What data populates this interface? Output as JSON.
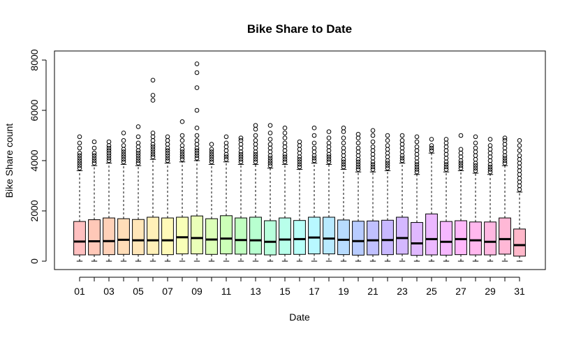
{
  "chart_data": {
    "type": "boxplot",
    "title": "Bike Share to Date",
    "xlabel": "Date",
    "ylabel": "Bike Share count",
    "ylim": [
      0,
      8000
    ],
    "yticks": [
      0,
      2000,
      4000,
      6000,
      8000
    ],
    "xtick_labels_shown": [
      "01",
      "03",
      "05",
      "07",
      "09",
      "11",
      "13",
      "15",
      "17",
      "19",
      "21",
      "23",
      "25",
      "27",
      "29",
      "31"
    ],
    "categories": [
      "01",
      "02",
      "03",
      "04",
      "05",
      "06",
      "07",
      "08",
      "09",
      "10",
      "11",
      "12",
      "13",
      "14",
      "15",
      "16",
      "17",
      "18",
      "19",
      "20",
      "21",
      "22",
      "23",
      "24",
      "25",
      "26",
      "27",
      "28",
      "29",
      "30",
      "31"
    ],
    "colors": [
      "#FFC0C0",
      "#FFC8B8",
      "#FFD1B8",
      "#FFDDB8",
      "#FFE6B8",
      "#FFF0B8",
      "#FFFAB8",
      "#F8FFB8",
      "#EAFFB8",
      "#DCFFB8",
      "#CCFFB8",
      "#C0FFC0",
      "#B8FFD0",
      "#B8FFDC",
      "#B8FFEA",
      "#B8FFF8",
      "#B8F8FF",
      "#B8EAFF",
      "#B8DCFF",
      "#B8CCFF",
      "#C0C0FF",
      "#C8B8FF",
      "#D4B8FF",
      "#E0B8FF",
      "#ECB8FF",
      "#F6B8FF",
      "#FFB8FA",
      "#FFB8EE",
      "#FFB8E2",
      "#FFB8D6",
      "#FFB8CA"
    ],
    "boxes": [
      {
        "category": "01",
        "whisker_low": 0,
        "q1": 250,
        "median": 780,
        "q3": 1580,
        "whisker_high": 3600,
        "outliers": [
          3700,
          3800,
          3900,
          4000,
          4100,
          4200,
          4300,
          4500,
          4700,
          4950
        ]
      },
      {
        "category": "02",
        "whisker_low": 0,
        "q1": 250,
        "median": 790,
        "q3": 1650,
        "whisker_high": 3800,
        "outliers": [
          3900,
          4000,
          4100,
          4200,
          4300,
          4500,
          4750
        ]
      },
      {
        "category": "03",
        "whisker_low": 0,
        "q1": 260,
        "median": 800,
        "q3": 1720,
        "whisker_high": 3900,
        "outliers": [
          4000,
          4100,
          4200,
          4300,
          4400,
          4500,
          4600,
          4750
        ]
      },
      {
        "category": "04",
        "whisker_low": 0,
        "q1": 270,
        "median": 850,
        "q3": 1690,
        "whisker_high": 3850,
        "outliers": [
          3950,
          4050,
          4150,
          4250,
          4350,
          4450,
          4600,
          4800,
          5100
        ]
      },
      {
        "category": "05",
        "whisker_low": 0,
        "q1": 260,
        "median": 830,
        "q3": 1660,
        "whisker_high": 3800,
        "outliers": [
          3900,
          4000,
          4100,
          4200,
          4300,
          4400,
          4550,
          4700,
          4950,
          5350
        ]
      },
      {
        "category": "06",
        "whisker_low": 0,
        "q1": 270,
        "median": 830,
        "q3": 1750,
        "whisker_high": 4050,
        "outliers": [
          4150,
          4250,
          4350,
          4450,
          4550,
          4650,
          4800,
          4950,
          5100,
          6400,
          6600,
          7200
        ]
      },
      {
        "category": "07",
        "whisker_low": 0,
        "q1": 260,
        "median": 830,
        "q3": 1720,
        "whisker_high": 3900,
        "outliers": [
          4000,
          4100,
          4200,
          4300,
          4400,
          4500,
          4650,
          4800,
          4950
        ]
      },
      {
        "category": "08",
        "whisker_low": 0,
        "q1": 290,
        "median": 950,
        "q3": 1750,
        "whisker_high": 3950,
        "outliers": [
          4050,
          4150,
          4250,
          4350,
          4450,
          4600,
          4800,
          5000,
          5550
        ]
      },
      {
        "category": "09",
        "whisker_low": 0,
        "q1": 290,
        "median": 920,
        "q3": 1800,
        "whisker_high": 4000,
        "outliers": [
          4100,
          4200,
          4300,
          4400,
          4500,
          4650,
          4800,
          5000,
          5300,
          6000,
          6900,
          7500,
          7850
        ]
      },
      {
        "category": "10",
        "whisker_low": 0,
        "q1": 270,
        "median": 860,
        "q3": 1690,
        "whisker_high": 3850,
        "outliers": [
          3950,
          4050,
          4150,
          4250,
          4350,
          4450,
          4650
        ]
      },
      {
        "category": "11",
        "whisker_low": 0,
        "q1": 290,
        "median": 900,
        "q3": 1810,
        "whisker_high": 3950,
        "outliers": [
          4050,
          4150,
          4250,
          4400,
          4550,
          4700,
          4950
        ]
      },
      {
        "category": "12",
        "whisker_low": 0,
        "q1": 280,
        "median": 840,
        "q3": 1720,
        "whisker_high": 3850,
        "outliers": [
          3950,
          4050,
          4150,
          4250,
          4350,
          4500,
          4650,
          4800,
          4900
        ]
      },
      {
        "category": "13",
        "whisker_low": 0,
        "q1": 280,
        "median": 830,
        "q3": 1750,
        "whisker_high": 3850,
        "outliers": [
          3950,
          4050,
          4150,
          4250,
          4350,
          4500,
          4650,
          4800,
          5000,
          5250,
          5400
        ]
      },
      {
        "category": "14",
        "whisker_low": 0,
        "q1": 250,
        "median": 770,
        "q3": 1610,
        "whisker_high": 3700,
        "outliers": [
          3800,
          3900,
          4000,
          4100,
          4200,
          4350,
          4500,
          4650,
          4850,
          5100,
          5400
        ]
      },
      {
        "category": "15",
        "whisker_low": 0,
        "q1": 270,
        "median": 860,
        "q3": 1720,
        "whisker_high": 3850,
        "outliers": [
          3950,
          4050,
          4150,
          4250,
          4400,
          4550,
          4700,
          4900,
          5100,
          5300
        ]
      },
      {
        "category": "16",
        "whisker_low": 0,
        "q1": 270,
        "median": 880,
        "q3": 1620,
        "whisker_high": 3650,
        "outliers": [
          3750,
          3850,
          3950,
          4050,
          4150,
          4300,
          4450,
          4600,
          4750
        ]
      },
      {
        "category": "17",
        "whisker_low": 0,
        "q1": 290,
        "median": 940,
        "q3": 1750,
        "whisker_high": 3900,
        "outliers": [
          4000,
          4100,
          4200,
          4350,
          4500,
          4700,
          5000,
          5300
        ]
      },
      {
        "category": "18",
        "whisker_low": 0,
        "q1": 290,
        "median": 900,
        "q3": 1750,
        "whisker_high": 3850,
        "outliers": [
          3950,
          4050,
          4150,
          4250,
          4400,
          4550,
          4700,
          4900,
          5150
        ]
      },
      {
        "category": "19",
        "whisker_low": 0,
        "q1": 260,
        "median": 850,
        "q3": 1640,
        "whisker_high": 3650,
        "outliers": [
          3750,
          3850,
          3950,
          4050,
          4200,
          4350,
          4500,
          4700,
          4900,
          5150,
          5300
        ]
      },
      {
        "category": "20",
        "whisker_low": 0,
        "q1": 240,
        "median": 800,
        "q3": 1590,
        "whisker_high": 3550,
        "outliers": [
          3650,
          3750,
          3850,
          3950,
          4050,
          4200,
          4350,
          4500,
          4700,
          4900,
          5050
        ]
      },
      {
        "category": "21",
        "whisker_low": 0,
        "q1": 250,
        "median": 830,
        "q3": 1600,
        "whisker_high": 3550,
        "outliers": [
          3650,
          3750,
          3850,
          3950,
          4100,
          4250,
          4400,
          4550,
          4750,
          5000,
          5200
        ]
      },
      {
        "category": "22",
        "whisker_low": 0,
        "q1": 260,
        "median": 840,
        "q3": 1630,
        "whisker_high": 3600,
        "outliers": [
          3700,
          3800,
          3900,
          4000,
          4150,
          4300,
          4450,
          4600,
          4800,
          5000
        ]
      },
      {
        "category": "23",
        "whisker_low": 0,
        "q1": 280,
        "median": 920,
        "q3": 1750,
        "whisker_high": 3900,
        "outliers": [
          4000,
          4100,
          4200,
          4350,
          4500,
          4650,
          4800,
          5000
        ]
      },
      {
        "category": "24",
        "whisker_low": 0,
        "q1": 230,
        "median": 710,
        "q3": 1540,
        "whisker_high": 3450,
        "outliers": [
          3550,
          3650,
          3750,
          3850,
          3950,
          4100,
          4250,
          4400,
          4550,
          4750,
          4950
        ]
      },
      {
        "category": "25",
        "whisker_low": 0,
        "q1": 250,
        "median": 880,
        "q3": 1880,
        "whisker_high": 4300,
        "outliers": [
          4400,
          4500,
          4600,
          4850
        ]
      },
      {
        "category": "26",
        "whisker_low": 0,
        "q1": 240,
        "median": 770,
        "q3": 1580,
        "whisker_high": 3550,
        "outliers": [
          3650,
          3750,
          3850,
          3950,
          4100,
          4250,
          4400,
          4550,
          4700,
          4850
        ]
      },
      {
        "category": "27",
        "whisker_low": 0,
        "q1": 260,
        "median": 880,
        "q3": 1610,
        "whisker_high": 3600,
        "outliers": [
          3700,
          3800,
          3900,
          4000,
          4150,
          4300,
          4450,
          5000
        ]
      },
      {
        "category": "28",
        "whisker_low": 0,
        "q1": 250,
        "median": 830,
        "q3": 1560,
        "whisker_high": 3500,
        "outliers": [
          3600,
          3700,
          3800,
          3900,
          4050,
          4200,
          4350,
          4500,
          4700,
          4950
        ]
      },
      {
        "category": "29",
        "whisker_low": 0,
        "q1": 250,
        "median": 770,
        "q3": 1560,
        "whisker_high": 3450,
        "outliers": [
          3550,
          3650,
          3750,
          3850,
          4000,
          4150,
          4300,
          4450,
          4600,
          4850
        ]
      },
      {
        "category": "30",
        "whisker_low": 0,
        "q1": 280,
        "median": 880,
        "q3": 1720,
        "whisker_high": 3800,
        "outliers": [
          3900,
          4000,
          4100,
          4200,
          4350,
          4500,
          4650,
          4800,
          4900
        ]
      },
      {
        "category": "31",
        "whisker_low": 0,
        "q1": 200,
        "median": 640,
        "q3": 1280,
        "whisker_high": 2750,
        "outliers": [
          2850,
          3000,
          3150,
          3300,
          3450,
          3600,
          3750,
          3900,
          4050,
          4200,
          4400,
          4600,
          4800
        ]
      }
    ]
  }
}
